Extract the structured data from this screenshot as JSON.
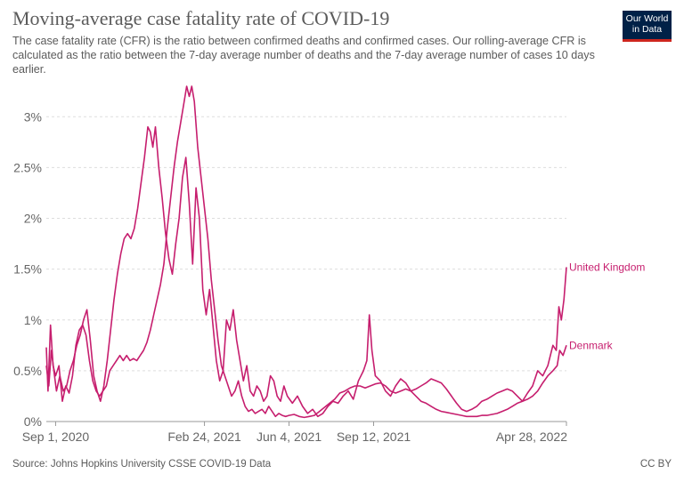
{
  "header": {
    "title": "Moving-average case fatality rate of COVID-19",
    "subtitle": "The case fatality rate (CFR) is the ratio between confirmed deaths and confirmed cases. Our rolling-average CFR is calculated as the ratio between the 7-day average number of deaths and the 7-day average number of cases 10 days earlier."
  },
  "logo": {
    "line1": "Our World",
    "line2": "in Data",
    "bg_color": "#002147",
    "bar_color": "#ce261e"
  },
  "footer": {
    "source": "Source: Johns Hopkins University CSSE COVID-19 Data",
    "license": "CC BY"
  },
  "chart_data": {
    "type": "line",
    "title": "Moving-average case fatality rate of COVID-19",
    "xlabel": "",
    "ylabel": "",
    "x_ticks": [
      "Sep 1, 2020",
      "Feb 24, 2021",
      "Jun 4, 2021",
      "Sep 12, 2021",
      "Apr 28, 2022"
    ],
    "y_ticks": [
      "0%",
      "0.5%",
      "1%",
      "1.5%",
      "2%",
      "2.5%",
      "3%"
    ],
    "ylim": [
      0,
      3.3
    ],
    "xlim": [
      "2020-08-21",
      "2022-04-28"
    ],
    "grid": "horizontal dashed",
    "series": [
      {
        "name": "United Kingdom",
        "color": "#c61e6e",
        "points": [
          [
            "2020-08-21",
            0.73
          ],
          [
            "2020-08-23",
            0.3
          ],
          [
            "2020-08-26",
            0.95
          ],
          [
            "2020-08-29",
            0.55
          ],
          [
            "2020-09-01",
            0.45
          ],
          [
            "2020-09-05",
            0.55
          ],
          [
            "2020-09-09",
            0.2
          ],
          [
            "2020-09-13",
            0.35
          ],
          [
            "2020-09-17",
            0.28
          ],
          [
            "2020-09-21",
            0.45
          ],
          [
            "2020-09-25",
            0.75
          ],
          [
            "2020-09-29",
            0.9
          ],
          [
            "2020-10-03",
            0.95
          ],
          [
            "2020-10-07",
            0.85
          ],
          [
            "2020-10-11",
            0.6
          ],
          [
            "2020-10-15",
            0.4
          ],
          [
            "2020-10-19",
            0.3
          ],
          [
            "2020-10-23",
            0.25
          ],
          [
            "2020-10-27",
            0.3
          ],
          [
            "2020-10-31",
            0.35
          ],
          [
            "2020-11-04",
            0.5
          ],
          [
            "2020-11-08",
            0.55
          ],
          [
            "2020-11-12",
            0.6
          ],
          [
            "2020-11-16",
            0.65
          ],
          [
            "2020-11-20",
            0.6
          ],
          [
            "2020-11-24",
            0.65
          ],
          [
            "2020-11-28",
            0.6
          ],
          [
            "2020-12-02",
            0.62
          ],
          [
            "2020-12-06",
            0.6
          ],
          [
            "2020-12-10",
            0.65
          ],
          [
            "2020-12-14",
            0.7
          ],
          [
            "2020-12-18",
            0.78
          ],
          [
            "2020-12-22",
            0.9
          ],
          [
            "2020-12-26",
            1.05
          ],
          [
            "2020-12-30",
            1.2
          ],
          [
            "2021-01-03",
            1.35
          ],
          [
            "2021-01-07",
            1.55
          ],
          [
            "2021-01-11",
            1.9
          ],
          [
            "2021-01-15",
            2.2
          ],
          [
            "2021-01-19",
            2.5
          ],
          [
            "2021-01-23",
            2.75
          ],
          [
            "2021-01-27",
            2.95
          ],
          [
            "2021-01-31",
            3.15
          ],
          [
            "2021-02-03",
            3.3
          ],
          [
            "2021-02-06",
            3.2
          ],
          [
            "2021-02-09",
            3.3
          ],
          [
            "2021-02-12",
            3.15
          ],
          [
            "2021-02-16",
            2.7
          ],
          [
            "2021-02-20",
            2.4
          ],
          [
            "2021-02-24",
            2.1
          ],
          [
            "2021-02-28",
            1.8
          ],
          [
            "2021-03-04",
            1.4
          ],
          [
            "2021-03-08",
            1.1
          ],
          [
            "2021-03-12",
            0.8
          ],
          [
            "2021-03-16",
            0.55
          ],
          [
            "2021-03-20",
            0.45
          ],
          [
            "2021-03-24",
            0.35
          ],
          [
            "2021-03-28",
            0.25
          ],
          [
            "2021-04-01",
            0.3
          ],
          [
            "2021-04-05",
            0.4
          ],
          [
            "2021-04-09",
            0.25
          ],
          [
            "2021-04-13",
            0.15
          ],
          [
            "2021-04-17",
            0.1
          ],
          [
            "2021-04-21",
            0.12
          ],
          [
            "2021-04-25",
            0.08
          ],
          [
            "2021-04-29",
            0.1
          ],
          [
            "2021-05-03",
            0.12
          ],
          [
            "2021-05-07",
            0.08
          ],
          [
            "2021-05-11",
            0.15
          ],
          [
            "2021-05-15",
            0.1
          ],
          [
            "2021-05-19",
            0.05
          ],
          [
            "2021-05-23",
            0.08
          ],
          [
            "2021-05-27",
            0.06
          ],
          [
            "2021-05-31",
            0.05
          ],
          [
            "2021-06-04",
            0.06
          ],
          [
            "2021-06-10",
            0.07
          ],
          [
            "2021-06-16",
            0.05
          ],
          [
            "2021-06-22",
            0.04
          ],
          [
            "2021-06-28",
            0.05
          ],
          [
            "2021-07-04",
            0.06
          ],
          [
            "2021-07-10",
            0.1
          ],
          [
            "2021-07-16",
            0.14
          ],
          [
            "2021-07-22",
            0.18
          ],
          [
            "2021-07-28",
            0.22
          ],
          [
            "2021-08-03",
            0.28
          ],
          [
            "2021-08-09",
            0.3
          ],
          [
            "2021-08-15",
            0.33
          ],
          [
            "2021-08-21",
            0.35
          ],
          [
            "2021-08-27",
            0.35
          ],
          [
            "2021-09-02",
            0.33
          ],
          [
            "2021-09-08",
            0.35
          ],
          [
            "2021-09-14",
            0.37
          ],
          [
            "2021-09-20",
            0.38
          ],
          [
            "2021-09-26",
            0.35
          ],
          [
            "2021-10-02",
            0.3
          ],
          [
            "2021-10-08",
            0.28
          ],
          [
            "2021-10-14",
            0.3
          ],
          [
            "2021-10-20",
            0.32
          ],
          [
            "2021-10-26",
            0.3
          ],
          [
            "2021-11-01",
            0.32
          ],
          [
            "2021-11-07",
            0.35
          ],
          [
            "2021-11-13",
            0.38
          ],
          [
            "2021-11-19",
            0.42
          ],
          [
            "2021-11-25",
            0.4
          ],
          [
            "2021-12-01",
            0.38
          ],
          [
            "2021-12-07",
            0.32
          ],
          [
            "2021-12-13",
            0.25
          ],
          [
            "2021-12-19",
            0.18
          ],
          [
            "2021-12-25",
            0.12
          ],
          [
            "2021-12-31",
            0.1
          ],
          [
            "2022-01-06",
            0.12
          ],
          [
            "2022-01-12",
            0.15
          ],
          [
            "2022-01-18",
            0.2
          ],
          [
            "2022-01-24",
            0.22
          ],
          [
            "2022-01-30",
            0.25
          ],
          [
            "2022-02-05",
            0.28
          ],
          [
            "2022-02-11",
            0.3
          ],
          [
            "2022-02-17",
            0.32
          ],
          [
            "2022-02-23",
            0.3
          ],
          [
            "2022-03-01",
            0.25
          ],
          [
            "2022-03-07",
            0.2
          ],
          [
            "2022-03-13",
            0.28
          ],
          [
            "2022-03-19",
            0.35
          ],
          [
            "2022-03-25",
            0.5
          ],
          [
            "2022-03-31",
            0.45
          ],
          [
            "2022-04-06",
            0.55
          ],
          [
            "2022-04-12",
            0.75
          ],
          [
            "2022-04-16",
            0.7
          ],
          [
            "2022-04-19",
            1.13
          ],
          [
            "2022-04-22",
            1.0
          ],
          [
            "2022-04-25",
            1.2
          ],
          [
            "2022-04-28",
            1.52
          ]
        ]
      },
      {
        "name": "Denmark",
        "color": "#c61e6e",
        "points": [
          [
            "2020-08-21",
            0.55
          ],
          [
            "2020-08-24",
            0.35
          ],
          [
            "2020-08-27",
            0.7
          ],
          [
            "2020-08-30",
            0.5
          ],
          [
            "2020-09-02",
            0.3
          ],
          [
            "2020-09-06",
            0.45
          ],
          [
            "2020-09-10",
            0.3
          ],
          [
            "2020-09-14",
            0.35
          ],
          [
            "2020-09-18",
            0.5
          ],
          [
            "2020-09-22",
            0.6
          ],
          [
            "2020-09-26",
            0.75
          ],
          [
            "2020-09-30",
            0.85
          ],
          [
            "2020-10-04",
            1.0
          ],
          [
            "2020-10-08",
            1.1
          ],
          [
            "2020-10-12",
            0.8
          ],
          [
            "2020-10-16",
            0.45
          ],
          [
            "2020-10-20",
            0.3
          ],
          [
            "2020-10-24",
            0.2
          ],
          [
            "2020-10-28",
            0.35
          ],
          [
            "2020-11-01",
            0.6
          ],
          [
            "2020-11-05",
            0.9
          ],
          [
            "2020-11-09",
            1.2
          ],
          [
            "2020-11-13",
            1.45
          ],
          [
            "2020-11-17",
            1.65
          ],
          [
            "2020-11-21",
            1.8
          ],
          [
            "2020-11-25",
            1.85
          ],
          [
            "2020-11-29",
            1.8
          ],
          [
            "2020-12-03",
            1.9
          ],
          [
            "2020-12-07",
            2.1
          ],
          [
            "2020-12-11",
            2.35
          ],
          [
            "2020-12-15",
            2.6
          ],
          [
            "2020-12-19",
            2.9
          ],
          [
            "2020-12-22",
            2.85
          ],
          [
            "2020-12-25",
            2.7
          ],
          [
            "2020-12-28",
            2.9
          ],
          [
            "2021-01-01",
            2.5
          ],
          [
            "2021-01-05",
            2.2
          ],
          [
            "2021-01-09",
            1.85
          ],
          [
            "2021-01-13",
            1.6
          ],
          [
            "2021-01-17",
            1.45
          ],
          [
            "2021-01-21",
            1.75
          ],
          [
            "2021-01-25",
            2.0
          ],
          [
            "2021-01-29",
            2.4
          ],
          [
            "2021-02-02",
            2.6
          ],
          [
            "2021-02-06",
            2.15
          ],
          [
            "2021-02-10",
            1.55
          ],
          [
            "2021-02-14",
            2.3
          ],
          [
            "2021-02-18",
            2.0
          ],
          [
            "2021-02-22",
            1.3
          ],
          [
            "2021-02-26",
            1.05
          ],
          [
            "2021-03-02",
            1.3
          ],
          [
            "2021-03-06",
            0.95
          ],
          [
            "2021-03-10",
            0.6
          ],
          [
            "2021-03-14",
            0.4
          ],
          [
            "2021-03-18",
            0.5
          ],
          [
            "2021-03-22",
            1.0
          ],
          [
            "2021-03-26",
            0.9
          ],
          [
            "2021-03-30",
            1.1
          ],
          [
            "2021-04-03",
            0.8
          ],
          [
            "2021-04-07",
            0.6
          ],
          [
            "2021-04-11",
            0.4
          ],
          [
            "2021-04-15",
            0.55
          ],
          [
            "2021-04-19",
            0.3
          ],
          [
            "2021-04-23",
            0.25
          ],
          [
            "2021-04-27",
            0.35
          ],
          [
            "2021-05-01",
            0.3
          ],
          [
            "2021-05-05",
            0.2
          ],
          [
            "2021-05-09",
            0.25
          ],
          [
            "2021-05-13",
            0.45
          ],
          [
            "2021-05-17",
            0.4
          ],
          [
            "2021-05-21",
            0.25
          ],
          [
            "2021-05-25",
            0.2
          ],
          [
            "2021-05-29",
            0.35
          ],
          [
            "2021-06-02",
            0.25
          ],
          [
            "2021-06-08",
            0.18
          ],
          [
            "2021-06-14",
            0.25
          ],
          [
            "2021-06-20",
            0.15
          ],
          [
            "2021-06-26",
            0.08
          ],
          [
            "2021-07-02",
            0.12
          ],
          [
            "2021-07-08",
            0.05
          ],
          [
            "2021-07-14",
            0.08
          ],
          [
            "2021-07-20",
            0.15
          ],
          [
            "2021-07-26",
            0.2
          ],
          [
            "2021-08-01",
            0.18
          ],
          [
            "2021-08-07",
            0.25
          ],
          [
            "2021-08-13",
            0.3
          ],
          [
            "2021-08-19",
            0.22
          ],
          [
            "2021-08-25",
            0.4
          ],
          [
            "2021-08-31",
            0.5
          ],
          [
            "2021-09-04",
            0.6
          ],
          [
            "2021-09-07",
            1.05
          ],
          [
            "2021-09-10",
            0.7
          ],
          [
            "2021-09-14",
            0.45
          ],
          [
            "2021-09-20",
            0.4
          ],
          [
            "2021-09-26",
            0.3
          ],
          [
            "2021-10-02",
            0.25
          ],
          [
            "2021-10-08",
            0.35
          ],
          [
            "2021-10-14",
            0.42
          ],
          [
            "2021-10-20",
            0.38
          ],
          [
            "2021-10-26",
            0.3
          ],
          [
            "2021-11-01",
            0.25
          ],
          [
            "2021-11-07",
            0.2
          ],
          [
            "2021-11-13",
            0.18
          ],
          [
            "2021-11-19",
            0.15
          ],
          [
            "2021-11-25",
            0.12
          ],
          [
            "2021-12-01",
            0.1
          ],
          [
            "2021-12-07",
            0.09
          ],
          [
            "2021-12-13",
            0.08
          ],
          [
            "2021-12-19",
            0.07
          ],
          [
            "2021-12-25",
            0.06
          ],
          [
            "2021-12-31",
            0.05
          ],
          [
            "2022-01-06",
            0.05
          ],
          [
            "2022-01-12",
            0.05
          ],
          [
            "2022-01-18",
            0.06
          ],
          [
            "2022-01-24",
            0.06
          ],
          [
            "2022-01-30",
            0.07
          ],
          [
            "2022-02-05",
            0.08
          ],
          [
            "2022-02-11",
            0.1
          ],
          [
            "2022-02-17",
            0.12
          ],
          [
            "2022-02-23",
            0.15
          ],
          [
            "2022-03-01",
            0.18
          ],
          [
            "2022-03-07",
            0.2
          ],
          [
            "2022-03-13",
            0.22
          ],
          [
            "2022-03-19",
            0.25
          ],
          [
            "2022-03-25",
            0.3
          ],
          [
            "2022-03-31",
            0.38
          ],
          [
            "2022-04-06",
            0.45
          ],
          [
            "2022-04-12",
            0.5
          ],
          [
            "2022-04-17",
            0.55
          ],
          [
            "2022-04-20",
            0.7
          ],
          [
            "2022-04-24",
            0.65
          ],
          [
            "2022-04-28",
            0.75
          ]
        ]
      }
    ]
  }
}
